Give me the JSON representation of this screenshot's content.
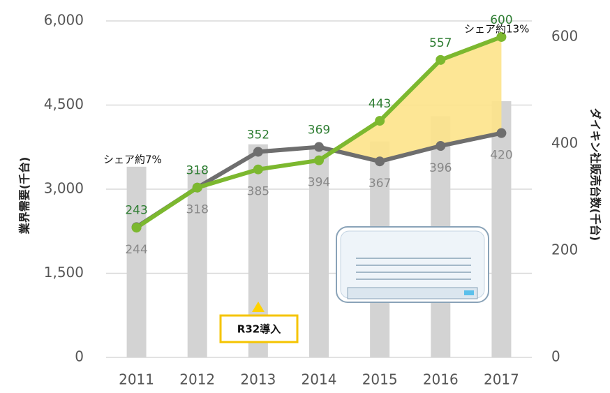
{
  "chart_data": {
    "type": "bar",
    "y_label": "業界需要(千台)",
    "y2_label": "ダイキン社販売台数(千台)",
    "categories": [
      "2011",
      "2012",
      "2013",
      "2014",
      "2015",
      "2016",
      "2017"
    ],
    "series": [
      {
        "type": "bar",
        "color": "#d3d3d3",
        "values": [
          3400,
          3350,
          3800,
          3720,
          3850,
          4300,
          4570
        ]
      },
      {
        "type": "line",
        "axis": "y2",
        "color": "#6e6e6e",
        "label_color": "#888888",
        "values": [
          244,
          318,
          385,
          394,
          367,
          396,
          420
        ]
      },
      {
        "type": "line",
        "axis": "y2",
        "color": "#7cb82f",
        "label_color": "#2e7d32",
        "values": [
          243,
          318,
          352,
          369,
          443,
          557,
          600
        ]
      }
    ],
    "fill_color": "#fde38a",
    "ylim": [
      0,
      6000
    ],
    "yticks": [
      0,
      {
        "value": 1500,
        "label": "1,500"
      },
      {
        "value": 3000,
        "label": "3,000"
      },
      {
        "value": 4500,
        "label": "4,500"
      },
      {
        "value": 6000,
        "label": "6,000"
      }
    ],
    "y2lim": [
      0,
      630
    ],
    "y2ticks": [
      0,
      200,
      400,
      600
    ],
    "grid": true,
    "annotations": [
      "シェア約7%",
      "シェア約13%",
      "R32導入"
    ]
  }
}
